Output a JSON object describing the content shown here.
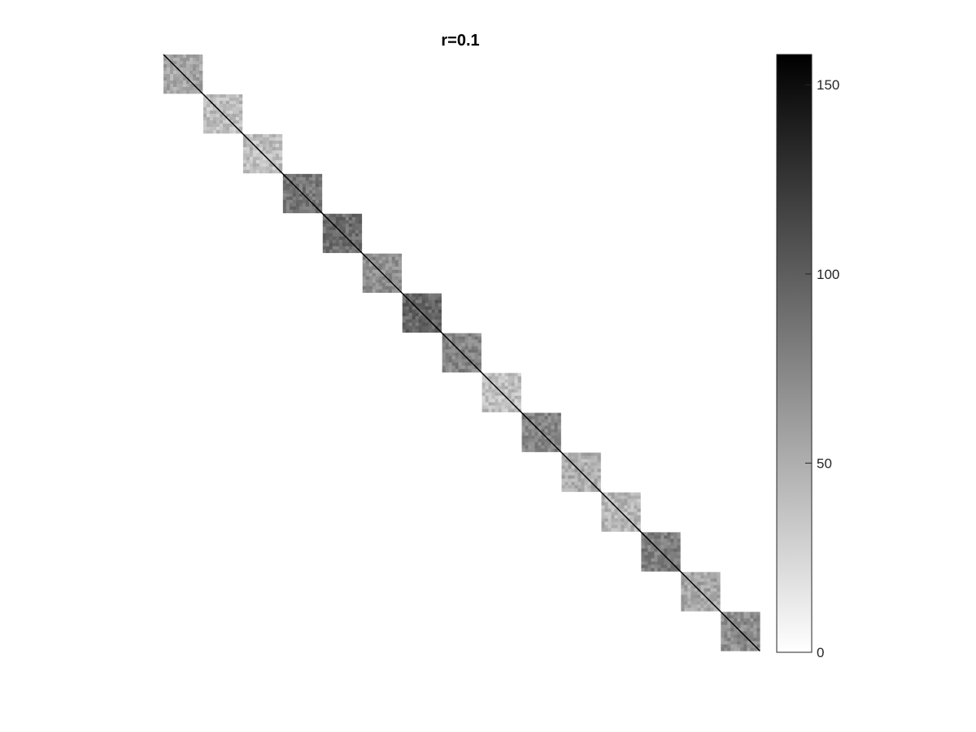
{
  "chart_data": {
    "type": "heatmap",
    "title": "r=0.1",
    "xlabel": "",
    "ylabel": "",
    "colormap": "gray-reversed",
    "axes_visible": false,
    "matrix_structure": "block-diagonal",
    "block_count": 15,
    "block_mean_values": [
      55,
      40,
      40,
      85,
      90,
      70,
      95,
      75,
      40,
      75,
      50,
      45,
      80,
      55,
      70
    ],
    "diagonal_value": 160,
    "colorbar": {
      "limits": [
        0,
        158
      ],
      "ticks": [
        0,
        50,
        100,
        150
      ],
      "tick_labels": [
        "0",
        "50",
        "100",
        "150"
      ]
    }
  },
  "colors": {
    "background": "#ffffff",
    "diagonal": "#000000",
    "colorbar_low": "#ffffff",
    "colorbar_high": "#000000"
  }
}
